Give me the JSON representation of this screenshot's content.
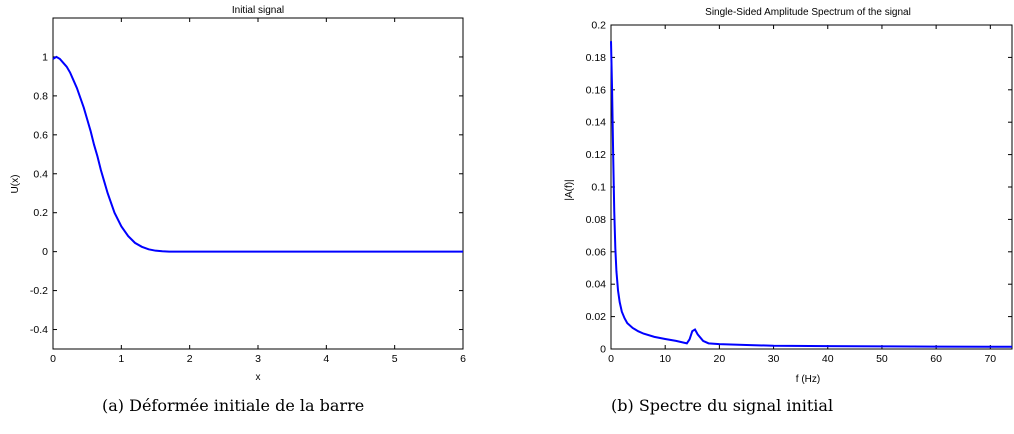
{
  "chart_data": [
    {
      "type": "line",
      "title": "Initial signal",
      "xlabel": "x",
      "ylabel": "U(x)",
      "xlim": [
        0,
        6
      ],
      "ylim": [
        -0.5,
        1.2
      ],
      "xticks": [
        0,
        1,
        2,
        3,
        4,
        5,
        6
      ],
      "yticks": [
        -0.4,
        -0.2,
        0,
        0.2,
        0.4,
        0.6,
        0.8,
        1
      ],
      "grid": false,
      "series": [
        {
          "color": "#0000ff",
          "x": [
            0,
            0.05,
            0.1,
            0.15,
            0.2,
            0.25,
            0.3,
            0.35,
            0.4,
            0.45,
            0.5,
            0.55,
            0.6,
            0.65,
            0.7,
            0.75,
            0.8,
            0.9,
            1.0,
            1.1,
            1.2,
            1.3,
            1.4,
            1.5,
            1.6,
            1.7,
            2.0,
            3.0,
            4.0,
            5.0,
            6.0
          ],
          "y": [
            0.99,
            1.0,
            0.99,
            0.97,
            0.95,
            0.92,
            0.88,
            0.84,
            0.79,
            0.74,
            0.68,
            0.62,
            0.55,
            0.49,
            0.42,
            0.36,
            0.3,
            0.2,
            0.13,
            0.08,
            0.045,
            0.025,
            0.012,
            0.005,
            0.002,
            0.0,
            0.0,
            0.0,
            0.0,
            0.0,
            0.0
          ]
        }
      ]
    },
    {
      "type": "line",
      "title": "Single-Sided Amplitude Spectrum of the signal",
      "xlabel": "f (Hz)",
      "ylabel": "|A(f)|",
      "xlim": [
        0,
        74
      ],
      "ylim": [
        0,
        0.2
      ],
      "xticks": [
        0,
        10,
        20,
        30,
        40,
        50,
        60,
        70
      ],
      "yticks": [
        0,
        0.02,
        0.04,
        0.06,
        0.08,
        0.1,
        0.12,
        0.14,
        0.16,
        0.18,
        0.2
      ],
      "grid": false,
      "series": [
        {
          "color": "#0000ff",
          "x": [
            0,
            0.2,
            0.4,
            0.6,
            0.8,
            1.0,
            1.3,
            1.6,
            2.0,
            2.5,
            3.0,
            4.0,
            5.0,
            6.0,
            8.0,
            10.0,
            12.0,
            14.0,
            14.5,
            15.0,
            15.5,
            16.0,
            17.0,
            18.0,
            20.0,
            25.0,
            30.0,
            40.0,
            50.0,
            60.0,
            70.0,
            74.0
          ],
          "y": [
            0.19,
            0.16,
            0.12,
            0.085,
            0.062,
            0.048,
            0.036,
            0.029,
            0.023,
            0.019,
            0.016,
            0.013,
            0.011,
            0.0095,
            0.0075,
            0.0062,
            0.005,
            0.0035,
            0.006,
            0.011,
            0.012,
            0.009,
            0.005,
            0.0035,
            0.003,
            0.0025,
            0.002,
            0.0018,
            0.0016,
            0.0015,
            0.0014,
            0.0014
          ]
        }
      ]
    }
  ],
  "captions": {
    "a": "(a) Déformée initiale de la barre",
    "b": "(b) Spectre du signal initial"
  }
}
